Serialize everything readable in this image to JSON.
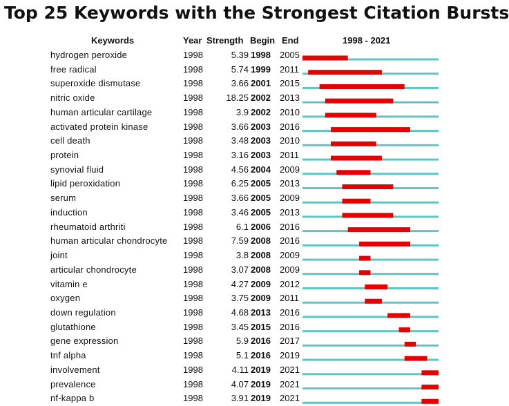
{
  "chart_data": {
    "type": "table",
    "title": "Top 25 Keywords with the Strongest Citation Bursts",
    "columns": [
      "Keywords",
      "Year",
      "Strength",
      "Begin",
      "End",
      "1998 - 2021"
    ],
    "range_start": 1998,
    "range_end": 2021,
    "colors": {
      "burst": "#e60000",
      "baseline": "#5ec4c4"
    },
    "rows": [
      {
        "keyword": "hydrogen peroxide",
        "year": "1998",
        "strength": "5.39",
        "begin": "1998",
        "end": "2005"
      },
      {
        "keyword": "free radical",
        "year": "1998",
        "strength": "5.74",
        "begin": "1999",
        "end": "2011"
      },
      {
        "keyword": "superoxide dismutase",
        "year": "1998",
        "strength": "3.66",
        "begin": "2001",
        "end": "2015"
      },
      {
        "keyword": "nitric oxide",
        "year": "1998",
        "strength": "18.25",
        "begin": "2002",
        "end": "2013"
      },
      {
        "keyword": "human articular cartilage",
        "year": "1998",
        "strength": "3.9",
        "begin": "2002",
        "end": "2010"
      },
      {
        "keyword": "activated protein kinase",
        "year": "1998",
        "strength": "3.66",
        "begin": "2003",
        "end": "2016"
      },
      {
        "keyword": "cell death",
        "year": "1998",
        "strength": "3.48",
        "begin": "2003",
        "end": "2010"
      },
      {
        "keyword": "protein",
        "year": "1998",
        "strength": "3.16",
        "begin": "2003",
        "end": "2011"
      },
      {
        "keyword": "synovial fluid",
        "year": "1998",
        "strength": "4.56",
        "begin": "2004",
        "end": "2009"
      },
      {
        "keyword": "lipid peroxidation",
        "year": "1998",
        "strength": "6.25",
        "begin": "2005",
        "end": "2013"
      },
      {
        "keyword": "serum",
        "year": "1998",
        "strength": "3.66",
        "begin": "2005",
        "end": "2009"
      },
      {
        "keyword": "induction",
        "year": "1998",
        "strength": "3.46",
        "begin": "2005",
        "end": "2013"
      },
      {
        "keyword": "rheumatoid arthriti",
        "year": "1998",
        "strength": "6.1",
        "begin": "2006",
        "end": "2016"
      },
      {
        "keyword": "human articular chondrocyte",
        "year": "1998",
        "strength": "7.59",
        "begin": "2008",
        "end": "2016"
      },
      {
        "keyword": "joint",
        "year": "1998",
        "strength": "3.8",
        "begin": "2008",
        "end": "2009"
      },
      {
        "keyword": "articular chondrocyte",
        "year": "1998",
        "strength": "3.07",
        "begin": "2008",
        "end": "2009"
      },
      {
        "keyword": "vitamin e",
        "year": "1998",
        "strength": "4.27",
        "begin": "2009",
        "end": "2012"
      },
      {
        "keyword": "oxygen",
        "year": "1998",
        "strength": "3.75",
        "begin": "2009",
        "end": "2011"
      },
      {
        "keyword": "down regulation",
        "year": "1998",
        "strength": "4.68",
        "begin": "2013",
        "end": "2016"
      },
      {
        "keyword": "glutathione",
        "year": "1998",
        "strength": "3.45",
        "begin": "2015",
        "end": "2016"
      },
      {
        "keyword": "gene expression",
        "year": "1998",
        "strength": "5.9",
        "begin": "2016",
        "end": "2017"
      },
      {
        "keyword": "tnf alpha",
        "year": "1998",
        "strength": "5.1",
        "begin": "2016",
        "end": "2019"
      },
      {
        "keyword": "involvement",
        "year": "1998",
        "strength": "4.11",
        "begin": "2019",
        "end": "2021"
      },
      {
        "keyword": "prevalence",
        "year": "1998",
        "strength": "4.07",
        "begin": "2019",
        "end": "2021"
      },
      {
        "keyword": "nf-kappa b",
        "year": "1998",
        "strength": "3.91",
        "begin": "2019",
        "end": "2021"
      }
    ]
  }
}
